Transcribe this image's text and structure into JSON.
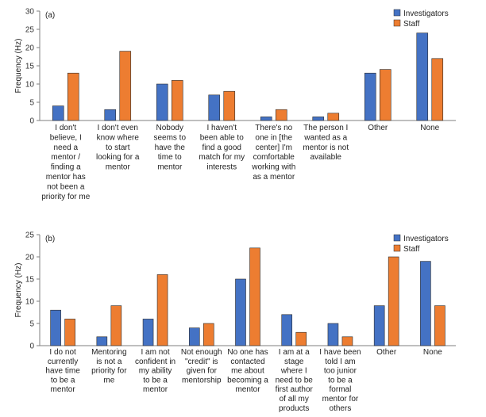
{
  "chart_data": [
    {
      "type": "bar",
      "panel_label": "(a)",
      "ylabel": "Frequency (Hz)",
      "ylim": [
        0,
        30
      ],
      "yticks": [
        0,
        5,
        10,
        15,
        20,
        25,
        30
      ],
      "legend_position": "top-right",
      "categories": [
        [
          "I don't",
          "believe, I",
          "need a",
          "mentor /",
          "finding a",
          "mentor has",
          "not been a",
          "priority for me"
        ],
        [
          "I don't even",
          "know where",
          "to start",
          "looking for a",
          "mentor"
        ],
        [
          "Nobody",
          "seems to",
          "have  the",
          "time to",
          "mentor"
        ],
        [
          "I haven't",
          "been able to",
          "find a good",
          "match for my",
          "interests"
        ],
        [
          "There's no",
          "one in [the",
          "center] I'm",
          "comfortable",
          "working with",
          "as a mentor"
        ],
        [
          "The person I",
          "wanted as a",
          "mentor is not",
          "available"
        ],
        [
          "Other"
        ],
        [
          "None"
        ]
      ],
      "series": [
        {
          "name": "Investigators",
          "color": "#4472C4",
          "values": [
            4,
            3,
            10,
            7,
            1,
            1,
            13,
            24
          ]
        },
        {
          "name": "Staff",
          "color": "#ED7D31",
          "values": [
            13,
            19,
            11,
            8,
            3,
            2,
            14,
            17
          ]
        }
      ]
    },
    {
      "type": "bar",
      "panel_label": "(b)",
      "ylabel": "Frequency (Hz)",
      "ylim": [
        0,
        25
      ],
      "yticks": [
        0,
        5,
        10,
        15,
        20,
        25
      ],
      "legend_position": "top-right",
      "categories": [
        [
          "I do not",
          "currently",
          "have time",
          "to be a",
          "mentor"
        ],
        [
          "Mentoring",
          "is not a",
          "priority for",
          "me"
        ],
        [
          "I am not",
          "confident in",
          "my ability",
          "to be a",
          "mentor"
        ],
        [
          "Not enough",
          "\"credit\" is",
          "given for",
          "mentorship"
        ],
        [
          "No one has",
          "contacted",
          "me about",
          "becoming a",
          "mentor"
        ],
        [
          "I am at a",
          "stage",
          "where I",
          "need to be",
          "first author",
          "of all my",
          "products"
        ],
        [
          "I have been",
          "told I am",
          "too junior",
          "to be a",
          "formal",
          "mentor for",
          "others"
        ],
        [
          "Other"
        ],
        [
          "None"
        ]
      ],
      "series": [
        {
          "name": "Investigators",
          "color": "#4472C4",
          "values": [
            8,
            2,
            6,
            4,
            15,
            7,
            5,
            9,
            19
          ]
        },
        {
          "name": "Staff",
          "color": "#ED7D31",
          "values": [
            6,
            9,
            16,
            5,
            22,
            3,
            2,
            20,
            9
          ]
        }
      ]
    }
  ]
}
